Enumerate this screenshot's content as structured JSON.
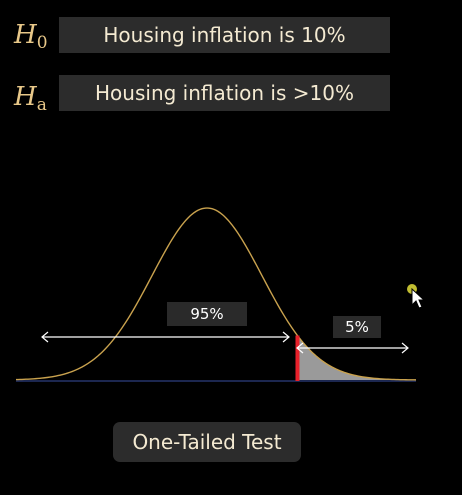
{
  "hypotheses": {
    "null": {
      "symbol": "H",
      "subscript": "0",
      "text": "Housing inflation is 10%"
    },
    "alternative": {
      "symbol": "H",
      "subscript": "a",
      "text": "Housing inflation is >10%"
    }
  },
  "distribution": {
    "acceptance_label": "95%",
    "rejection_label": "5%",
    "tail": "right",
    "alpha": 0.05,
    "curve_color": "#c9a24e",
    "critical_line_color": "#e8202a",
    "shade_color": "#9a9a9a"
  },
  "test_label": "One-Tailed Test"
}
